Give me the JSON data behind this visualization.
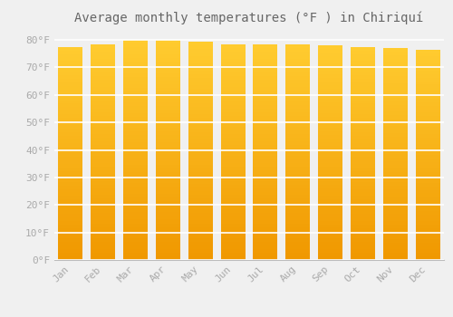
{
  "title": "Average monthly temperatures (°F ) in Chiriquí",
  "months": [
    "Jan",
    "Feb",
    "Mar",
    "Apr",
    "May",
    "Jun",
    "Jul",
    "Aug",
    "Sep",
    "Oct",
    "Nov",
    "Dec"
  ],
  "values": [
    77.5,
    78.5,
    80.0,
    80.0,
    79.5,
    78.5,
    78.5,
    78.5,
    78.0,
    77.5,
    77.0,
    76.5
  ],
  "bar_color_left": "#F5A800",
  "bar_color_center": "#FFD040",
  "bar_color_right": "#F5A800",
  "bar_edge_color": "#CC8800",
  "background_color": "#f0f0f0",
  "plot_bg_color": "#f0f0f0",
  "grid_color": "#ffffff",
  "ytick_labels": [
    "0°F",
    "10°F",
    "20°F",
    "30°F",
    "40°F",
    "50°F",
    "60°F",
    "70°F",
    "80°F"
  ],
  "ytick_values": [
    0,
    10,
    20,
    30,
    40,
    50,
    60,
    70,
    80
  ],
  "ylim": [
    0,
    83
  ],
  "title_fontsize": 10,
  "tick_fontsize": 8,
  "font_color": "#aaaaaa",
  "bar_width": 0.75
}
